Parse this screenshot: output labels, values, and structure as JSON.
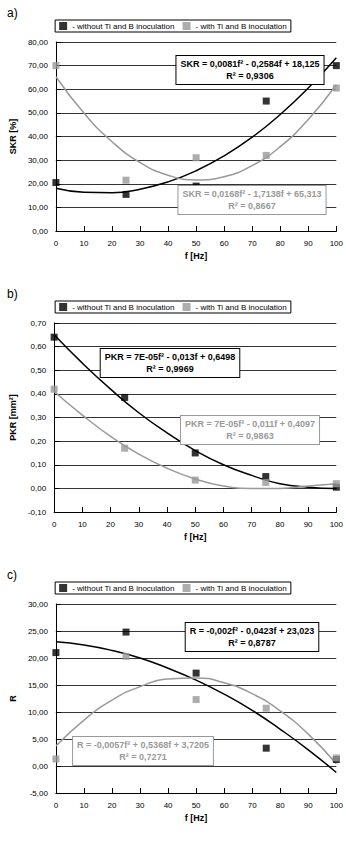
{
  "chart_data": [
    {
      "type": "scatter",
      "title": "a)",
      "x_label": "f [Hz]",
      "y_label": "SKR [%]",
      "xlim": [
        0,
        100
      ],
      "xticks": [
        0,
        10,
        20,
        30,
        40,
        50,
        60,
        70,
        80,
        90,
        100
      ],
      "ylim": [
        0,
        80
      ],
      "yticks": [
        {
          "value": 0,
          "label": "0,00"
        },
        {
          "value": 10,
          "label": "10,00"
        },
        {
          "value": 20,
          "label": "20,00"
        },
        {
          "value": 30,
          "label": "30,00"
        },
        {
          "value": 40,
          "label": "40,00"
        },
        {
          "value": 50,
          "label": "50,00"
        },
        {
          "value": 60,
          "label": "60,00"
        },
        {
          "value": 70,
          "label": "70,00"
        },
        {
          "value": 80,
          "label": "80,00"
        }
      ],
      "grid": true,
      "legend": "top",
      "series": [
        {
          "name": "- without Ti and B inoculation",
          "color": "#000000",
          "marker": "square",
          "line_style": "solid",
          "x": [
            0,
            25,
            50,
            75,
            100
          ],
          "values": [
            20.5,
            15.5,
            19,
            55,
            70
          ],
          "trend_x": [
            0,
            10,
            20,
            30,
            40,
            50,
            60,
            70,
            80,
            90,
            100
          ],
          "trend_values": [
            18.1,
            16.4,
            16.2,
            17.7,
            20.8,
            25.5,
            31.8,
            39.7,
            49.3,
            60.5,
            73.3
          ],
          "annotation": [
            "SKR = 0,0081f² - 0,2584f + 18,125",
            "R² = 0,9306"
          ]
        },
        {
          "name": "- with Ti and B inoculation",
          "color": "#999999",
          "marker": "square",
          "line_style": "solid",
          "x": [
            0,
            25,
            50,
            75,
            100
          ],
          "values": [
            70,
            21.5,
            31,
            32,
            60.5
          ],
          "trend_x": [
            0,
            10,
            20,
            30,
            40,
            50,
            60,
            70,
            80,
            90,
            100
          ],
          "trend_values": [
            65.3,
            49.9,
            37.8,
            29.0,
            23.6,
            21.6,
            23.0,
            27.7,
            35.7,
            47.2,
            61.9
          ],
          "annotation": [
            "SKR = 0,0168f² - 1,7138f + 65,313",
            "R² = 0,8667"
          ]
        }
      ]
    },
    {
      "type": "scatter",
      "title": "b)",
      "x_label": "f [Hz]",
      "y_label": "PKR [mm²]",
      "xlim": [
        0,
        100
      ],
      "xticks": [
        0,
        10,
        20,
        30,
        40,
        50,
        60,
        70,
        80,
        90,
        100
      ],
      "ylim": [
        -0.1,
        0.7
      ],
      "yticks": [
        {
          "value": -0.1,
          "label": "-0,10"
        },
        {
          "value": 0,
          "label": "0,00"
        },
        {
          "value": 0.1,
          "label": "0,10"
        },
        {
          "value": 0.2,
          "label": "0,20"
        },
        {
          "value": 0.3,
          "label": "0,30"
        },
        {
          "value": 0.4,
          "label": "0,40"
        },
        {
          "value": 0.5,
          "label": "0,50"
        },
        {
          "value": 0.6,
          "label": "0,60"
        },
        {
          "value": 0.7,
          "label": "0,70"
        }
      ],
      "grid": true,
      "legend": "top",
      "series": [
        {
          "name": "- without Ti and B inoculation",
          "color": "#000000",
          "marker": "square",
          "line_style": "solid",
          "x": [
            0,
            25,
            50,
            75,
            100
          ],
          "values": [
            0.64,
            0.385,
            0.15,
            0.05,
            0.005
          ],
          "trend_x": [
            0,
            10,
            20,
            30,
            40,
            50,
            60,
            70,
            80,
            90,
            100
          ],
          "trend_values": [
            0.65,
            0.53,
            0.42,
            0.32,
            0.235,
            0.16,
            0.1,
            0.055,
            0.02,
            0.005,
            0.0
          ],
          "annotation": [
            "PKR = 7E-05f² - 0,013f + 0,6498",
            "R² = 0,9969"
          ]
        },
        {
          "name": "- with Ti and B inoculation",
          "color": "#999999",
          "marker": "square",
          "line_style": "solid",
          "x": [
            0,
            25,
            50,
            75,
            100
          ],
          "values": [
            0.42,
            0.17,
            0.035,
            0.025,
            0.02
          ],
          "trend_x": [
            0,
            10,
            20,
            30,
            40,
            50,
            60,
            70,
            80,
            90,
            100
          ],
          "trend_values": [
            0.41,
            0.31,
            0.22,
            0.145,
            0.085,
            0.04,
            0.01,
            0.0,
            0.0,
            0.01,
            0.02
          ],
          "annotation": [
            "PKR = 7E-05f² - 0,011f + 0,4097",
            "R² = 0,9863"
          ]
        }
      ]
    },
    {
      "type": "scatter",
      "title": "c)",
      "x_label": "f [Hz]",
      "y_label": "R",
      "xlim": [
        0,
        100
      ],
      "xticks": [
        0,
        10,
        20,
        30,
        40,
        50,
        60,
        70,
        80,
        90,
        100
      ],
      "ylim": [
        -5,
        30
      ],
      "yticks": [
        {
          "value": -5,
          "label": "-5,00"
        },
        {
          "value": 0,
          "label": "0,00"
        },
        {
          "value": 5,
          "label": "5,00"
        },
        {
          "value": 10,
          "label": "10,00"
        },
        {
          "value": 15,
          "label": "15,00"
        },
        {
          "value": 20,
          "label": "20,00"
        },
        {
          "value": 25,
          "label": "25,00"
        },
        {
          "value": 30,
          "label": "30,00"
        }
      ],
      "grid": true,
      "legend": "top",
      "series": [
        {
          "name": "- without Ti and B inoculation",
          "color": "#000000",
          "marker": "square",
          "line_style": "solid",
          "x": [
            0,
            25,
            50,
            75,
            100
          ],
          "values": [
            21,
            24.8,
            17.2,
            3.3,
            1.2
          ],
          "trend_x": [
            0,
            10,
            20,
            30,
            40,
            50,
            60,
            70,
            80,
            90,
            100
          ],
          "trend_values": [
            23.0,
            22.4,
            21.4,
            20.0,
            18.1,
            15.9,
            13.3,
            10.3,
            6.8,
            3.0,
            -1.2
          ],
          "annotation": [
            "R = -0,002f² - 0,0423f + 23,023",
            "R² = 0,8787"
          ]
        },
        {
          "name": "- with Ti and B inoculation",
          "color": "#999999",
          "marker": "square",
          "line_style": "solid",
          "x": [
            0,
            25,
            50,
            75,
            100
          ],
          "values": [
            1.3,
            20.3,
            12.3,
            10.7,
            1.5
          ],
          "trend_x": [
            0,
            10,
            20,
            30,
            40,
            50,
            60,
            70,
            80,
            90,
            100
          ],
          "trend_values": [
            3.7,
            8.5,
            12.2,
            14.7,
            16.1,
            16.3,
            15.4,
            13.4,
            10.2,
            5.9,
            0.4
          ],
          "annotation": [
            "R = -0,0057f² + 0,5368f + 3,7205",
            "R² = 0,7271"
          ]
        }
      ]
    }
  ]
}
